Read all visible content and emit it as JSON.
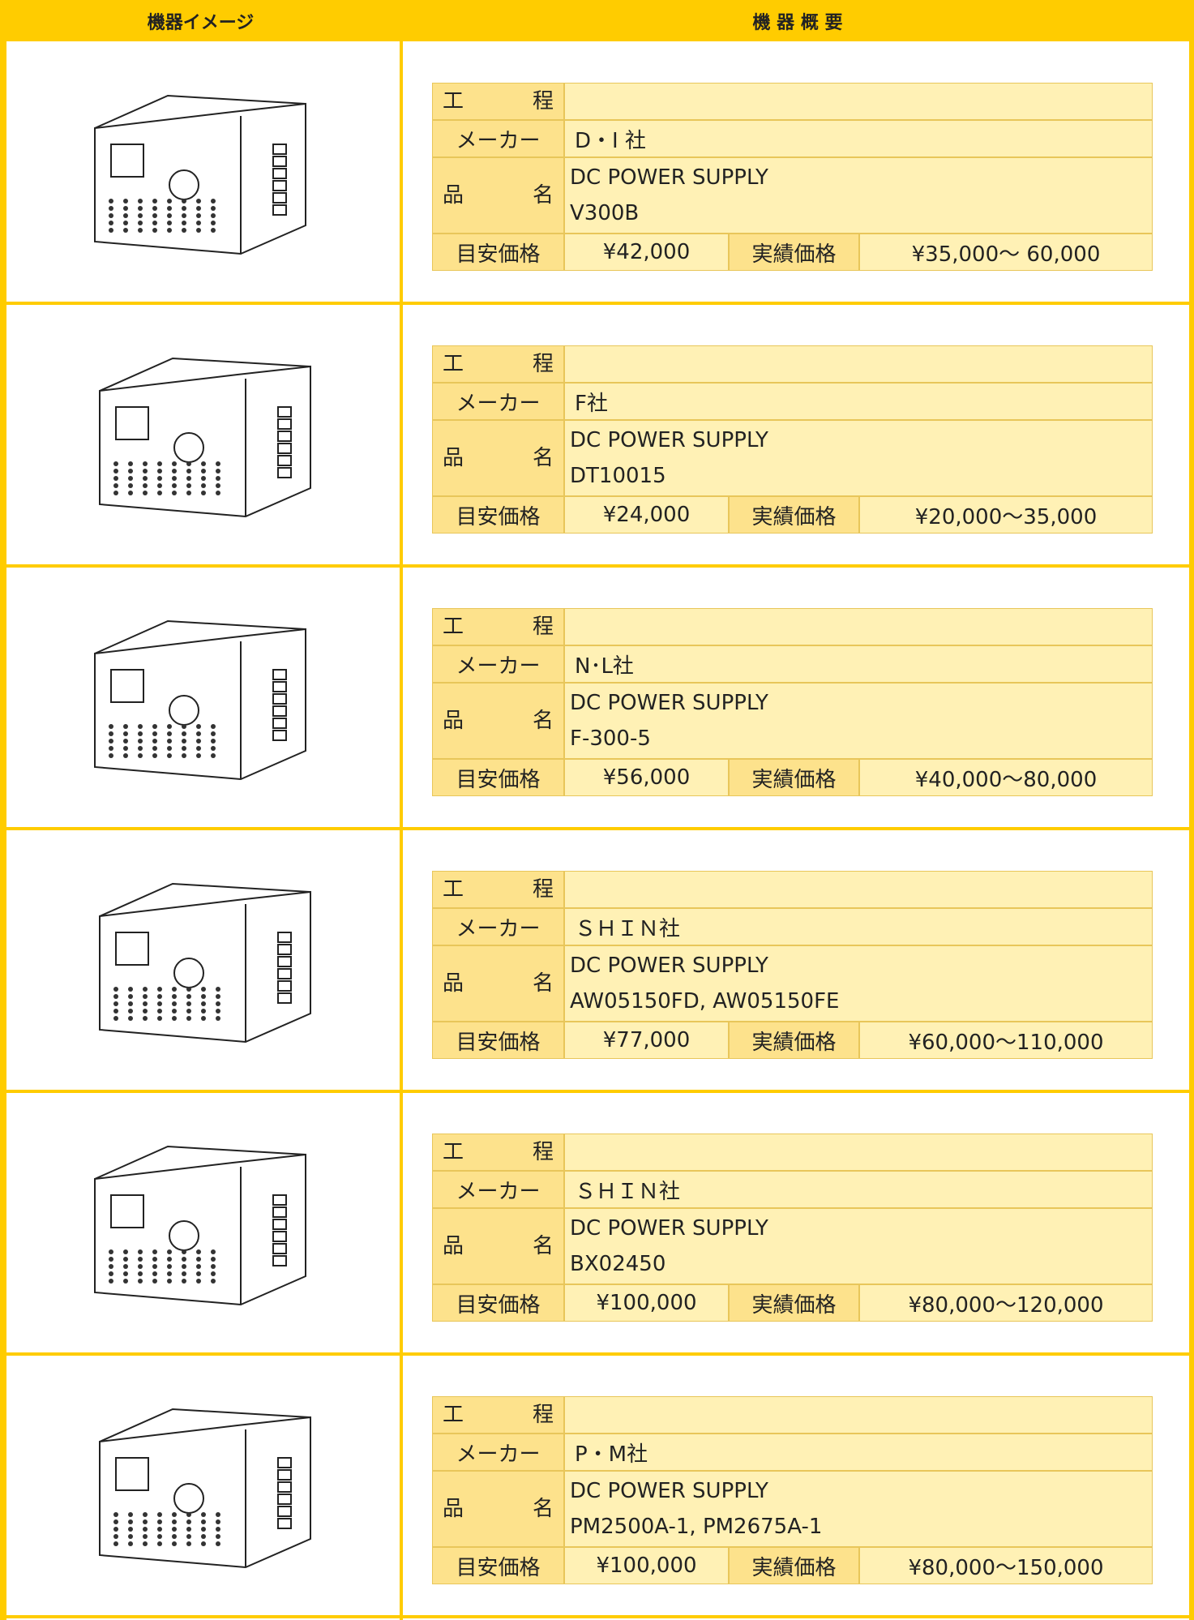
{
  "header": {
    "image": "機器イメージ",
    "overview": "機 器 概 要"
  },
  "items": [
    {
      "process_label": "工　程",
      "maker_label": "メーカー",
      "maker": "D・I 社",
      "name_label": "品　名",
      "name_line1": "DC POWER SUPPLY",
      "name_line2": "V300B",
      "estimate_label": "目安価格",
      "estimate": "¥42,000",
      "actual_label": "実績価格",
      "actual": "¥35,000～ 60,000"
    },
    {
      "process_label": "工　程",
      "maker_label": "メーカー",
      "maker": "F社",
      "name_label": "品　名",
      "name_line1": "DC POWER SUPPLY",
      "name_line2": "DT10015",
      "estimate_label": "目安価格",
      "estimate": "¥24,000",
      "actual_label": "実績価格",
      "actual": "¥20,000～35,000"
    },
    {
      "process_label": "工　程",
      "maker_label": "メーカー",
      "maker": "N･L社",
      "name_label": "品　名",
      "name_line1": "DC POWER SUPPLY",
      "name_line2": "F-300-5",
      "estimate_label": "目安価格",
      "estimate": "¥56,000",
      "actual_label": "実績価格",
      "actual": "¥40,000～80,000"
    },
    {
      "process_label": "工　程",
      "maker_label": "メーカー",
      "maker": "ＳＨＩＮ社",
      "name_label": "品　名",
      "name_line1": "DC POWER SUPPLY",
      "name_line2": "AW05150FD, AW05150FE",
      "estimate_label": "目安価格",
      "estimate": "¥77,000",
      "actual_label": "実績価格",
      "actual": "¥60,000～110,000"
    },
    {
      "process_label": "工　程",
      "maker_label": "メーカー",
      "maker": "ＳＨＩＮ社",
      "name_label": "品　名",
      "name_line1": "DC POWER SUPPLY",
      "name_line2": "BX02450",
      "estimate_label": "目安価格",
      "estimate": "¥100,000",
      "actual_label": "実績価格",
      "actual": "¥80,000～120,000"
    },
    {
      "process_label": "工　程",
      "maker_label": "メーカー",
      "maker": "P・M社",
      "name_label": "品　名",
      "name_line1": "DC POWER SUPPLY",
      "name_line2": "PM2500A-1, PM2675A-1",
      "estimate_label": "目安価格",
      "estimate": "¥100,000",
      "actual_label": "実績価格",
      "actual": "¥80,000～150,000"
    }
  ]
}
